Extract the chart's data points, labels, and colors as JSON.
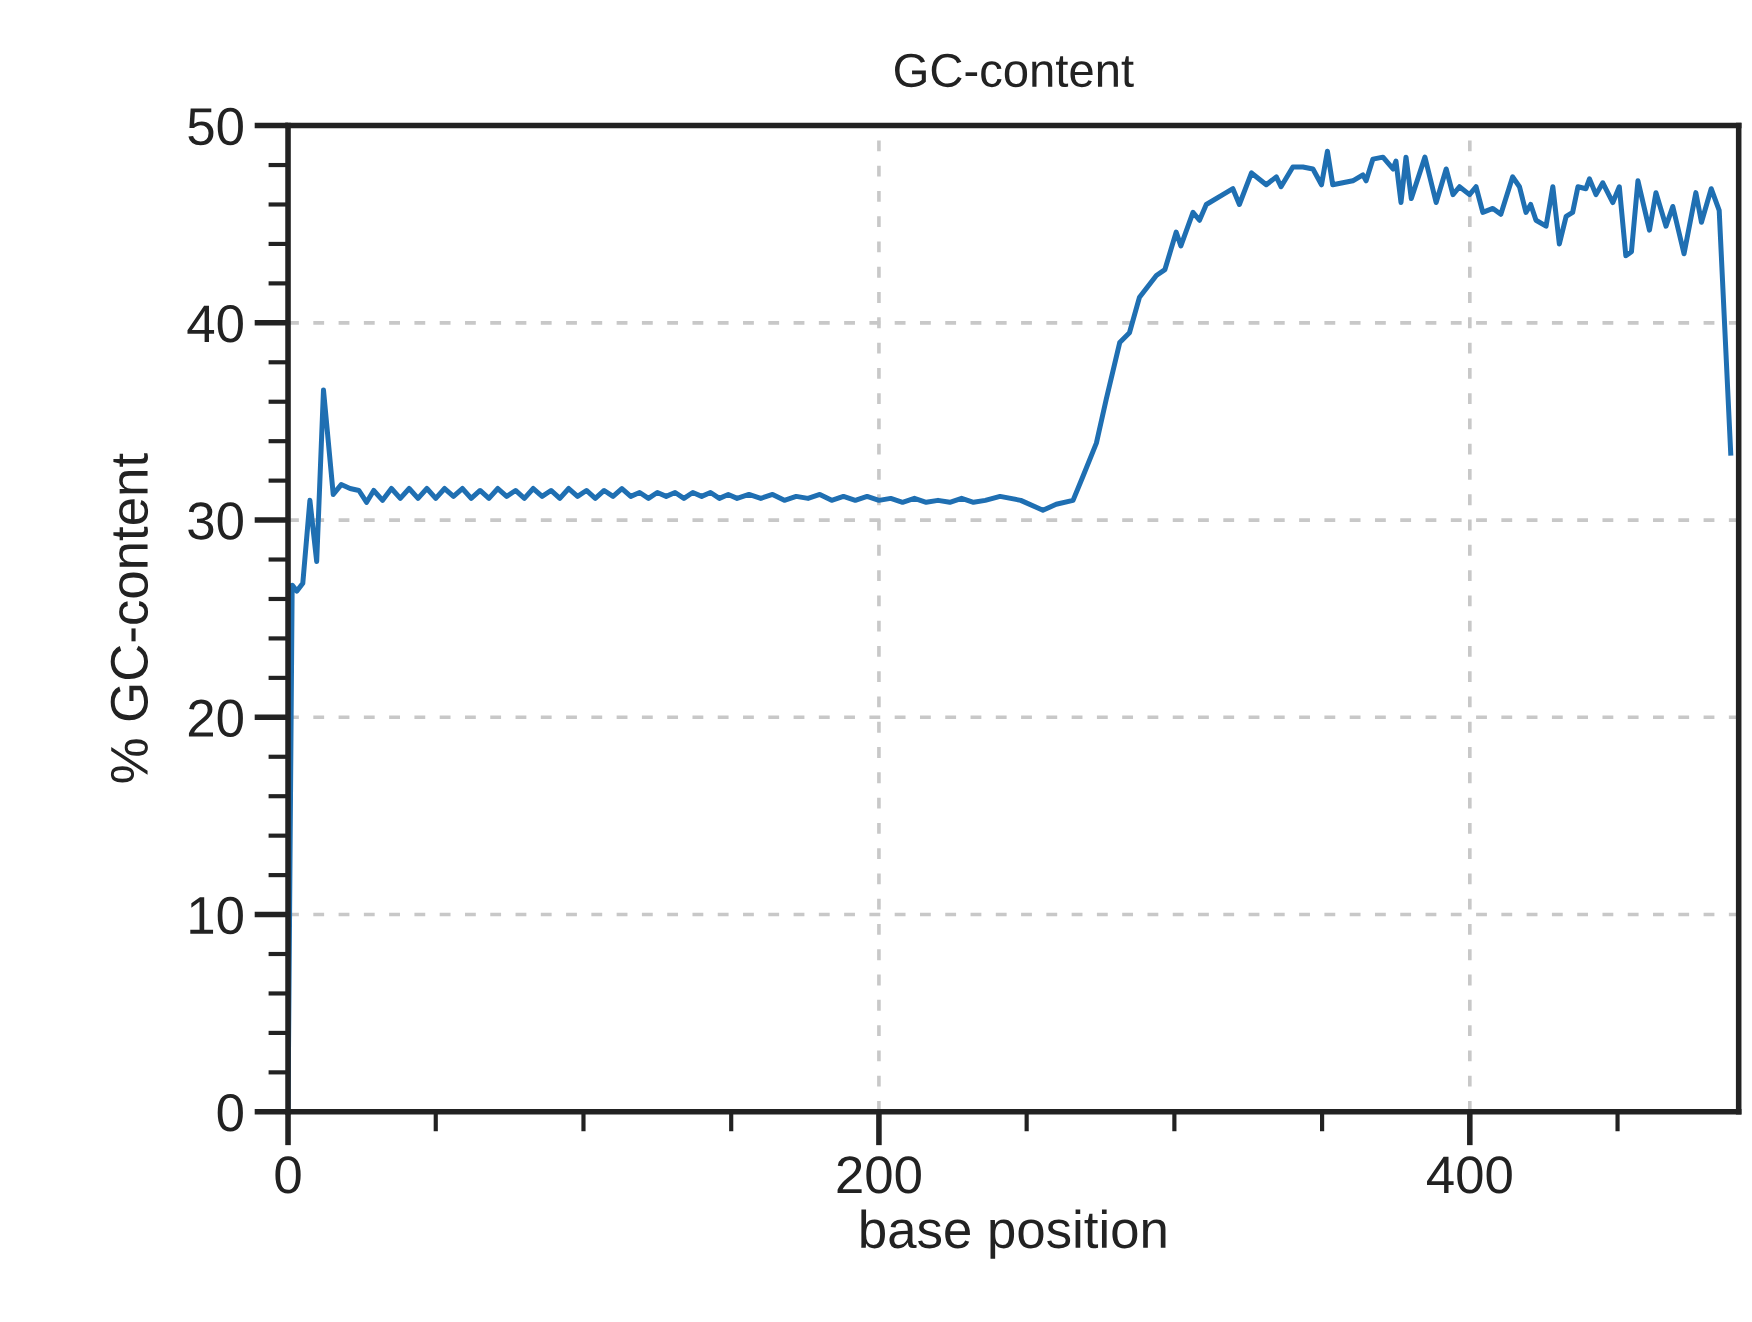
{
  "chart_data": {
    "type": "line",
    "title": "GC-content",
    "xlabel": "base position",
    "ylabel": "% GC-content",
    "xlim": [
      0,
      491
    ],
    "ylim": [
      0,
      50
    ],
    "xticks": [
      0,
      {
        "value": 50,
        "label": null
      },
      {
        "value": 100,
        "label": null
      },
      {
        "value": 150,
        "label": null
      },
      200,
      {
        "value": 250,
        "label": null
      },
      {
        "value": 300,
        "label": null
      },
      {
        "value": 350,
        "label": null
      },
      400,
      {
        "value": 450,
        "label": null
      }
    ],
    "yticks": [
      0,
      {
        "value": 2,
        "label": null
      },
      {
        "value": 4,
        "label": null
      },
      {
        "value": 6,
        "label": null
      },
      {
        "value": 8,
        "label": null
      },
      10,
      {
        "value": 12,
        "label": null
      },
      {
        "value": 14,
        "label": null
      },
      {
        "value": 16,
        "label": null
      },
      {
        "value": 18,
        "label": null
      },
      20,
      {
        "value": 22,
        "label": null
      },
      {
        "value": 24,
        "label": null
      },
      {
        "value": 26,
        "label": null
      },
      {
        "value": 28,
        "label": null
      },
      30,
      {
        "value": 32,
        "label": null
      },
      {
        "value": 34,
        "label": null
      },
      {
        "value": 36,
        "label": null
      },
      {
        "value": 38,
        "label": null
      },
      40,
      {
        "value": 42,
        "label": null
      },
      {
        "value": 44,
        "label": null
      },
      {
        "value": 46,
        "label": null
      },
      {
        "value": 48,
        "label": null
      },
      50
    ],
    "grid": true,
    "legend": false,
    "marker": "none",
    "line_style": "solid",
    "series": [
      {
        "color": "#1f6fb2",
        "x": [
          0,
          1.4,
          3,
          5,
          7.4,
          9.7,
          12,
          15.3,
          18,
          21,
          24,
          26.6,
          29,
          32,
          35,
          38,
          41,
          44,
          47,
          50,
          53,
          56,
          59,
          62,
          65,
          68,
          71,
          74,
          77,
          80,
          83,
          86,
          89,
          92,
          95,
          98,
          101,
          104,
          107,
          110,
          113,
          116,
          119,
          122,
          125,
          128,
          131,
          134,
          137,
          140,
          143,
          146,
          149,
          152,
          156,
          160,
          164,
          168,
          172,
          176,
          180,
          184,
          188,
          192,
          196,
          200,
          204,
          208,
          212,
          216,
          220,
          224,
          228,
          232,
          236,
          241,
          248,
          255.5,
          260,
          265.7,
          269,
          273.6,
          276.9,
          281.5,
          284.8,
          288.2,
          293.9,
          296.8,
          300.6,
          302.2,
          306.3,
          308.5,
          310.8,
          316.4,
          319.8,
          322,
          326.1,
          331.1,
          334.5,
          336.1,
          340.1,
          343.5,
          346.9,
          349.8,
          351.8,
          353.6,
          360.4,
          363.8,
          364.9,
          367.2,
          370.6,
          374,
          375,
          376.7,
          378.4,
          380.2,
          384.8,
          388.6,
          392,
          394.3,
          396.5,
          399.9,
          402.1,
          404.4,
          407.8,
          410.5,
          414.5,
          416.8,
          419,
          420.6,
          422.4,
          425.8,
          428.1,
          430.3,
          432.6,
          434.8,
          436.6,
          439.3,
          440.5,
          442.7,
          445,
          448.4,
          450.6,
          452.8,
          454.7,
          456.9,
          460.8,
          463,
          466.4,
          468.7,
          472.5,
          476.5,
          478.4,
          481.7,
          484.4,
          488.3
        ],
        "values": [
          0,
          26.7,
          26.4,
          26.8,
          31.0,
          27.9,
          36.6,
          31.3,
          31.8,
          31.6,
          31.5,
          30.9,
          31.5,
          31.0,
          31.6,
          31.1,
          31.6,
          31.1,
          31.6,
          31.1,
          31.6,
          31.2,
          31.6,
          31.1,
          31.5,
          31.1,
          31.6,
          31.2,
          31.5,
          31.1,
          31.6,
          31.2,
          31.5,
          31.1,
          31.6,
          31.2,
          31.5,
          31.1,
          31.5,
          31.2,
          31.6,
          31.2,
          31.4,
          31.1,
          31.4,
          31.2,
          31.4,
          31.1,
          31.4,
          31.2,
          31.4,
          31.1,
          31.3,
          31.1,
          31.3,
          31.1,
          31.3,
          31.0,
          31.2,
          31.1,
          31.3,
          31.0,
          31.2,
          31.0,
          31.2,
          31.0,
          31.1,
          30.9,
          31.1,
          30.9,
          31.0,
          30.9,
          31.1,
          30.9,
          31.0,
          31.2,
          31.0,
          30.5,
          30.8,
          31.0,
          32.2,
          33.9,
          36.1,
          39.0,
          39.5,
          41.3,
          42.4,
          42.7,
          44.6,
          43.9,
          45.6,
          45.2,
          46.0,
          46.5,
          46.8,
          46.0,
          47.6,
          47.0,
          47.4,
          46.9,
          47.9,
          47.9,
          47.8,
          47.0,
          48.7,
          47.0,
          47.2,
          47.5,
          47.2,
          48.3,
          48.4,
          47.8,
          48.2,
          46.1,
          48.4,
          46.3,
          48.4,
          46.1,
          47.8,
          46.5,
          46.9,
          46.5,
          46.9,
          45.6,
          45.8,
          45.5,
          47.4,
          46.9,
          45.6,
          46.0,
          45.2,
          44.9,
          46.9,
          44.0,
          45.4,
          45.6,
          46.9,
          46.8,
          47.3,
          46.5,
          47.1,
          46.1,
          46.9,
          43.4,
          43.6,
          47.2,
          44.7,
          46.6,
          44.9,
          45.9,
          43.5,
          46.6,
          45.1,
          46.8,
          45.7,
          33.4
        ]
      }
    ]
  }
}
